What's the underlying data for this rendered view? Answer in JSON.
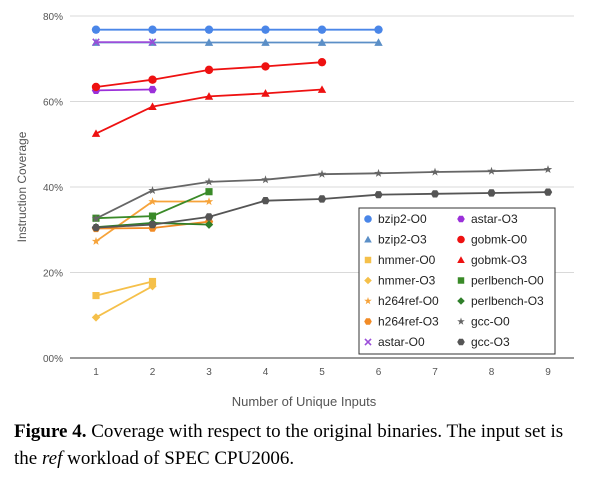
{
  "chart_data": {
    "type": "line",
    "xlabel": "Number of Unique Inputs",
    "ylabel": "Instruction Coverage",
    "xlim": [
      1,
      9
    ],
    "ylim": [
      0,
      80
    ],
    "x_ticks": [
      "1",
      "2",
      "3",
      "4",
      "5",
      "6",
      "7",
      "8",
      "9"
    ],
    "y_ticks": [
      "00%",
      "20%",
      "40%",
      "60%",
      "80%"
    ],
    "grid": "horizontal",
    "legend_position": "lower-right inside plot",
    "series": [
      {
        "name": "bzip2-O0",
        "color": "#4a86e8",
        "marker": "circle",
        "x": [
          1,
          2,
          3,
          4,
          5,
          6
        ],
        "values": [
          76.8,
          76.8,
          76.8,
          76.8,
          76.8,
          76.8
        ]
      },
      {
        "name": "bzip2-O3",
        "color": "#5b8fc7",
        "marker": "triangle",
        "x": [
          1,
          2,
          3,
          4,
          5,
          6
        ],
        "values": [
          73.8,
          73.8,
          73.8,
          73.8,
          73.8,
          73.8
        ]
      },
      {
        "name": "hmmer-O0",
        "color": "#f5c04a",
        "marker": "square",
        "x": [
          1,
          2
        ],
        "values": [
          14.6,
          17.9
        ]
      },
      {
        "name": "hmmer-O3",
        "color": "#f5c04a",
        "marker": "diamond",
        "x": [
          1,
          2
        ],
        "values": [
          9.5,
          16.8
        ]
      },
      {
        "name": "h264ref-O0",
        "color": "#f6a33a",
        "marker": "star",
        "x": [
          1,
          2,
          3
        ],
        "values": [
          27.3,
          36.6,
          36.6
        ]
      },
      {
        "name": "h264ref-O3",
        "color": "#f28b25",
        "marker": "hexagon",
        "x": [
          1,
          2,
          3
        ],
        "values": [
          30.3,
          30.4,
          31.9
        ]
      },
      {
        "name": "astar-O0",
        "color": "#9b4ed9",
        "marker": "cross",
        "x": [
          1,
          2
        ],
        "values": [
          73.9,
          73.9
        ]
      },
      {
        "name": "astar-O3",
        "color": "#9b30d9",
        "marker": "hexagon",
        "x": [
          1,
          2
        ],
        "values": [
          62.6,
          62.8
        ]
      },
      {
        "name": "gobmk-O0",
        "color": "#ee1111",
        "marker": "circle",
        "x": [
          1,
          2,
          3,
          4,
          5
        ],
        "values": [
          63.4,
          65.1,
          67.4,
          68.2,
          69.2
        ]
      },
      {
        "name": "gobmk-O3",
        "color": "#ee1111",
        "marker": "triangle",
        "x": [
          1,
          2,
          3,
          4,
          5
        ],
        "values": [
          52.5,
          58.8,
          61.2,
          61.9,
          62.8
        ]
      },
      {
        "name": "perlbench-O0",
        "color": "#3a8a28",
        "marker": "square",
        "x": [
          1,
          2,
          3
        ],
        "values": [
          32.7,
          33.2,
          38.9
        ]
      },
      {
        "name": "perlbench-O3",
        "color": "#2f7f2a",
        "marker": "diamond",
        "x": [
          1,
          2,
          3
        ],
        "values": [
          30.6,
          31.6,
          31.2
        ]
      },
      {
        "name": "gcc-O0",
        "color": "#666666",
        "marker": "star",
        "x": [
          1,
          2,
          3,
          4,
          5,
          6,
          7,
          8,
          9
        ],
        "values": [
          32.6,
          39.2,
          41.2,
          41.7,
          43.0,
          43.2,
          43.5,
          43.7,
          44.1
        ]
      },
      {
        "name": "gcc-O3",
        "color": "#555555",
        "marker": "hexagon",
        "x": [
          1,
          2,
          3,
          4,
          5,
          6,
          7,
          8,
          9
        ],
        "values": [
          30.5,
          31.2,
          33.0,
          36.8,
          37.2,
          38.2,
          38.4,
          38.6,
          38.8
        ]
      }
    ]
  },
  "caption": {
    "label": "Figure 4.",
    "text_part1": "Coverage with respect to the original binaries. The input set is the",
    "text_italic": "ref",
    "text_part2": "workload of SPEC CPU2006."
  }
}
